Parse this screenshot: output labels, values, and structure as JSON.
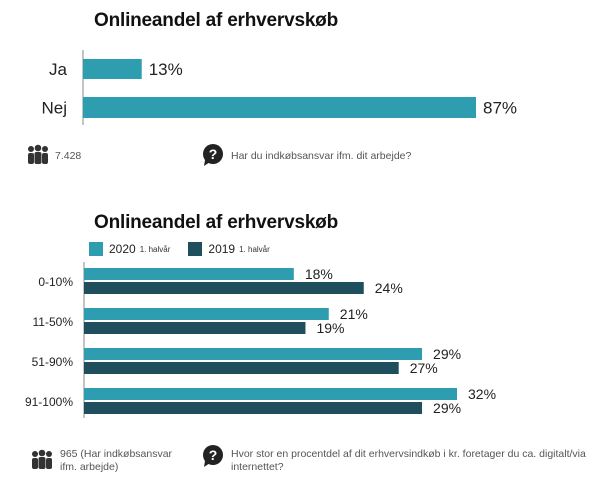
{
  "colors": {
    "teal": "#2E9DB0",
    "dark": "#1F4F5C",
    "text": "#222222"
  },
  "footer1": {
    "count": "7.428",
    "question": "Har du indkøbsansvar ifm. dit arbejde?"
  },
  "footer2": {
    "count": "965 (Har indkøbsansvar ifm. arbejde)",
    "question": "Hvor stor en procentdel af dit erhvervsindkøb i kr. foretager du ca. digitalt/via internettet?"
  },
  "chart_data": [
    {
      "type": "bar",
      "orientation": "horizontal",
      "title": "Onlineandel af erhvervskøb",
      "categories": [
        "Ja",
        "Nej"
      ],
      "values": [
        13,
        87
      ],
      "value_labels": [
        "13%",
        "87%"
      ],
      "xlim": [
        0,
        100
      ]
    },
    {
      "type": "bar",
      "orientation": "horizontal",
      "title": "Onlineandel af erhvervskøb",
      "categories": [
        "0-10%",
        "11-50%",
        "51-90%",
        "91-100%"
      ],
      "series": [
        {
          "name": "2020",
          "name_note": "1. halvår",
          "values": [
            18,
            21,
            29,
            32
          ],
          "labels": [
            "18%",
            "21%",
            "29%",
            "32%"
          ]
        },
        {
          "name": "2019",
          "name_note": "1. halvår",
          "values": [
            24,
            19,
            27,
            29
          ],
          "labels": [
            "24%",
            "19%",
            "27%",
            "29%"
          ]
        }
      ],
      "legend_position": "top-left",
      "xlim": [
        0,
        100
      ]
    }
  ]
}
